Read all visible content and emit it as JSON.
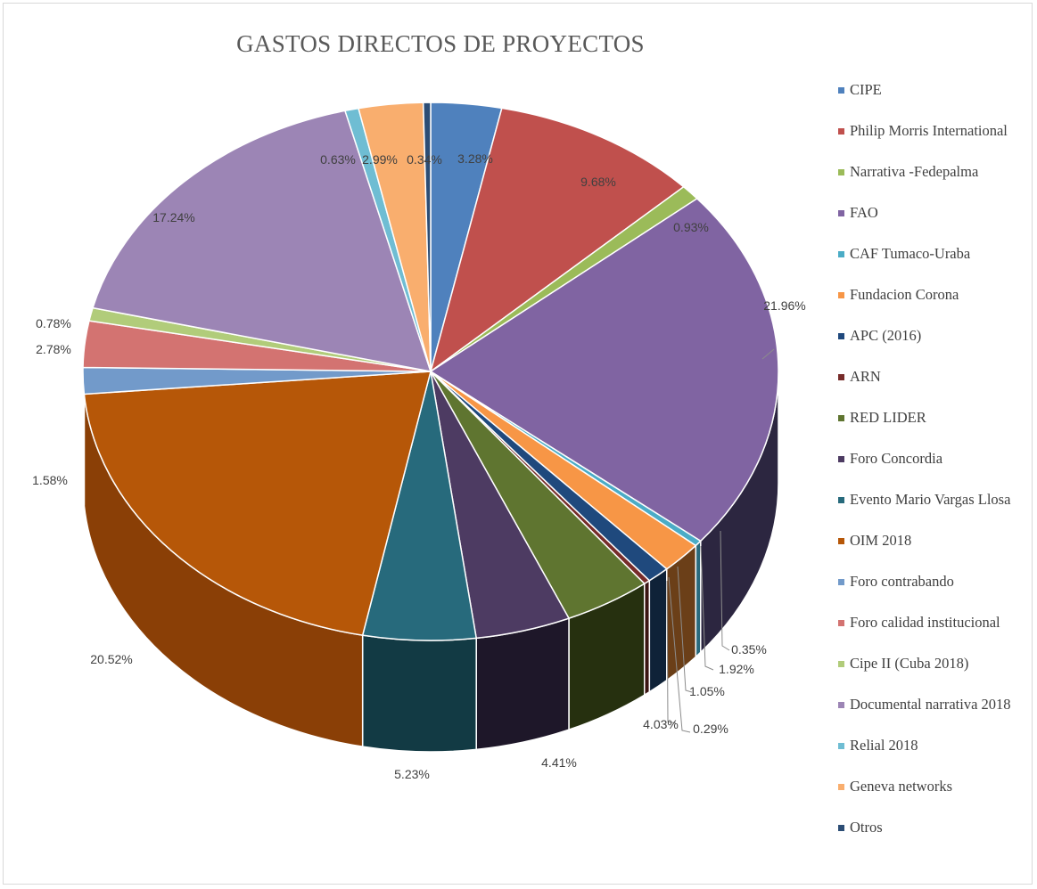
{
  "chart_data": {
    "type": "pie",
    "title": "GASTOS DIRECTOS DE PROYECTOS",
    "legend_position": "right",
    "slices": [
      {
        "name": "CIPE",
        "value": 3.28,
        "label": "3.28%",
        "color": "#4f81bd",
        "side_color": "#2e4c72"
      },
      {
        "name": "Philip Morris International",
        "value": 9.68,
        "label": "9.68%",
        "color": "#c0504d",
        "side_color": "#7a2e2c"
      },
      {
        "name": "Narrativa -Fedepalma",
        "value": 0.93,
        "label": "0.93%",
        "color": "#9bbb59",
        "side_color": "#5e7534"
      },
      {
        "name": "FAO",
        "value": 21.96,
        "label": "21.96%",
        "color": "#8064a2",
        "side_color": "#2c2640"
      },
      {
        "name": "CAF Tumaco-Uraba",
        "value": 0.35,
        "label": "0.35%",
        "color": "#4bacc6",
        "side_color": "#2a6a7c"
      },
      {
        "name": "Fundacion Corona",
        "value": 1.92,
        "label": "1.92%",
        "color": "#f79646",
        "side_color": "#6b3f18"
      },
      {
        "name": "APC (2016)",
        "value": 1.05,
        "label": "1.05%",
        "color": "#1f497d",
        "side_color": "#0f2238"
      },
      {
        "name": "ARN",
        "value": 0.29,
        "label": "0.29%",
        "color": "#772c2a",
        "side_color": "#3a1312"
      },
      {
        "name": "RED LIDER",
        "value": 4.03,
        "label": "4.03%",
        "color": "#5f7530",
        "side_color": "#26300f"
      },
      {
        "name": "Foro Concordia",
        "value": 4.41,
        "label": "4.41%",
        "color": "#4d3b62",
        "side_color": "#1e1729"
      },
      {
        "name": "Evento Mario Vargas Llosa",
        "value": 5.23,
        "label": "5.23%",
        "color": "#276a7c",
        "side_color": "#123a44"
      },
      {
        "name": "OIM 2018",
        "value": 20.52,
        "label": "20.52%",
        "color": "#b65708",
        "side_color": "#8a3f06"
      },
      {
        "name": "Foro contrabando",
        "value": 1.58,
        "label": "1.58%",
        "color": "#729aca",
        "side_color": "#4a6e98"
      },
      {
        "name": "Foro calidad institucional",
        "value": 2.78,
        "label": "2.78%",
        "color": "#d37371",
        "side_color": "#9a4a48"
      },
      {
        "name": "Cipe II (Cuba 2018)",
        "value": 0.78,
        "label": "0.78%",
        "color": "#b1cc7a",
        "side_color": "#7d9650"
      },
      {
        "name": "Documental narrativa 2018",
        "value": 17.24,
        "label": "17.24%",
        "color": "#9c85b5",
        "side_color": "#6b5888"
      },
      {
        "name": "Relial 2018",
        "value": 0.63,
        "label": "0.63%",
        "color": "#6fbdd3",
        "side_color": "#3f8ba0"
      },
      {
        "name": "Geneva networks",
        "value": 2.99,
        "label": "2.99%",
        "color": "#f9ae6e",
        "side_color": "#c07a3a"
      },
      {
        "name": "Otros",
        "value": 0.34,
        "label": "0.34%",
        "color": "#2c4d75",
        "side_color": "#162840"
      }
    ]
  }
}
